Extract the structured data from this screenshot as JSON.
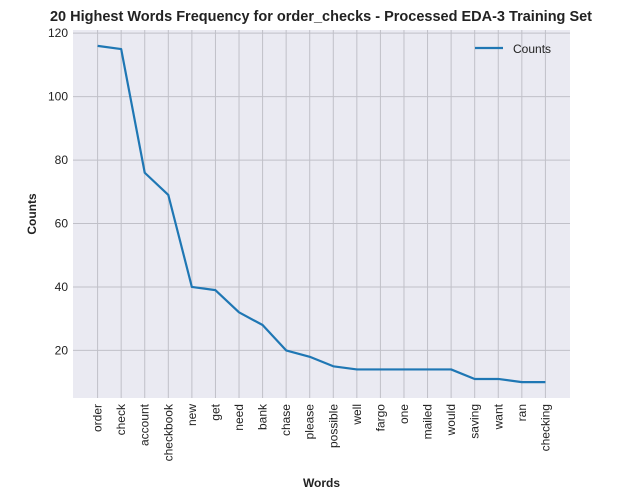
{
  "chart_data": {
    "type": "line",
    "title": "20 Highest Words Frequency for order_checks - Processed EDA-3 Training Set",
    "xlabel": "Words",
    "ylabel": "Counts",
    "categories": [
      "order",
      "check",
      "account",
      "checkbook",
      "new",
      "get",
      "need",
      "bank",
      "chase",
      "please",
      "possible",
      "well",
      "fargo",
      "one",
      "mailed",
      "would",
      "saving",
      "want",
      "ran",
      "checking"
    ],
    "series": [
      {
        "name": "Counts",
        "values": [
          116,
          115,
          76,
          69,
          40,
          39,
          32,
          28,
          20,
          18,
          15,
          14,
          14,
          14,
          14,
          14,
          11,
          11,
          10,
          10
        ]
      }
    ],
    "yticks": [
      20,
      40,
      60,
      80,
      100,
      120
    ],
    "ylim": [
      5,
      121
    ],
    "grid": true,
    "legend_position": "top-right",
    "colors": {
      "line": "#1f77b4",
      "plot_background": "#eaeaf2",
      "grid": "#c0c0c8",
      "figure_background": "#ffffff"
    }
  }
}
